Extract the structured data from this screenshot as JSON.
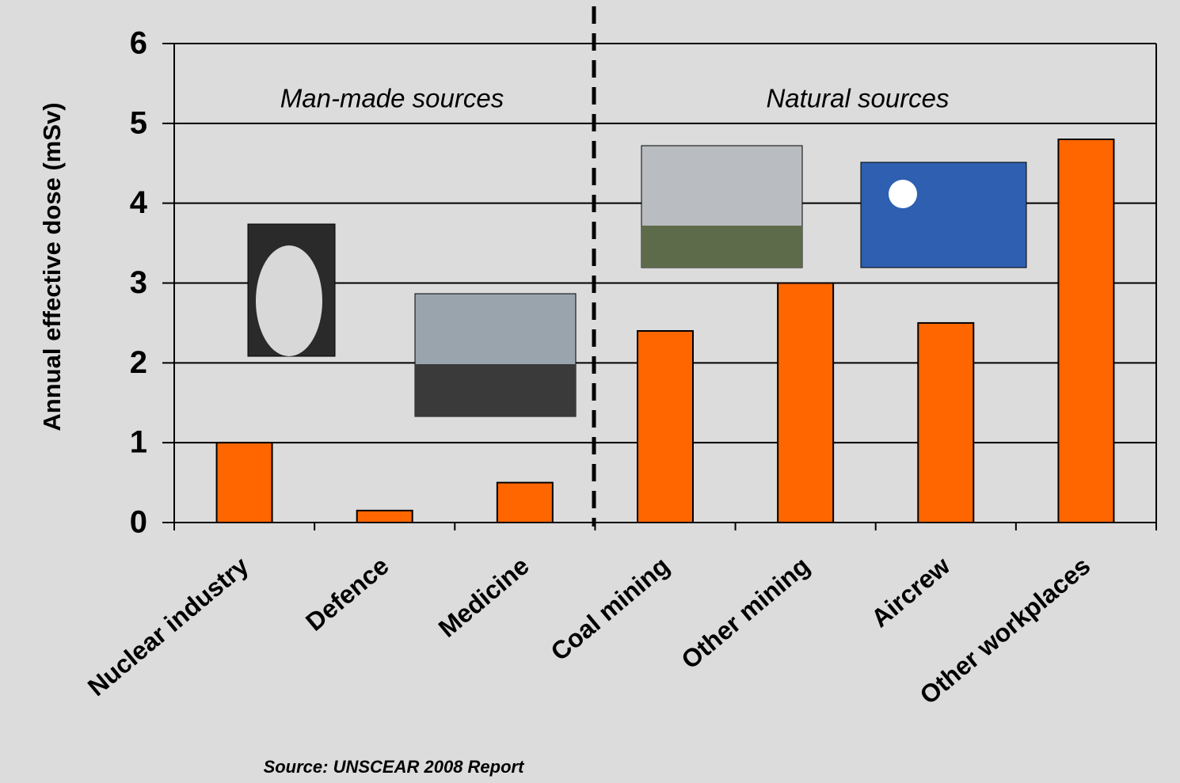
{
  "chart_data": {
    "type": "bar",
    "y_label": "Annual effective dose (mSv)",
    "categories": [
      "Nuclear industry",
      "Defence",
      "Medicine",
      "Coal mining",
      "Other mining",
      "Aircrew",
      "Other workplaces"
    ],
    "values": [
      1.0,
      0.15,
      0.5,
      2.4,
      3.0,
      2.5,
      4.8
    ],
    "color": "#ff6600",
    "ylim": [
      0,
      6
    ],
    "yticks": [
      0,
      1,
      2,
      3,
      4,
      5,
      6
    ],
    "grid": true,
    "annotations": [
      "Man-made sources",
      "Natural sources"
    ],
    "source": "Source: UNSCEAR 2008 Report"
  }
}
